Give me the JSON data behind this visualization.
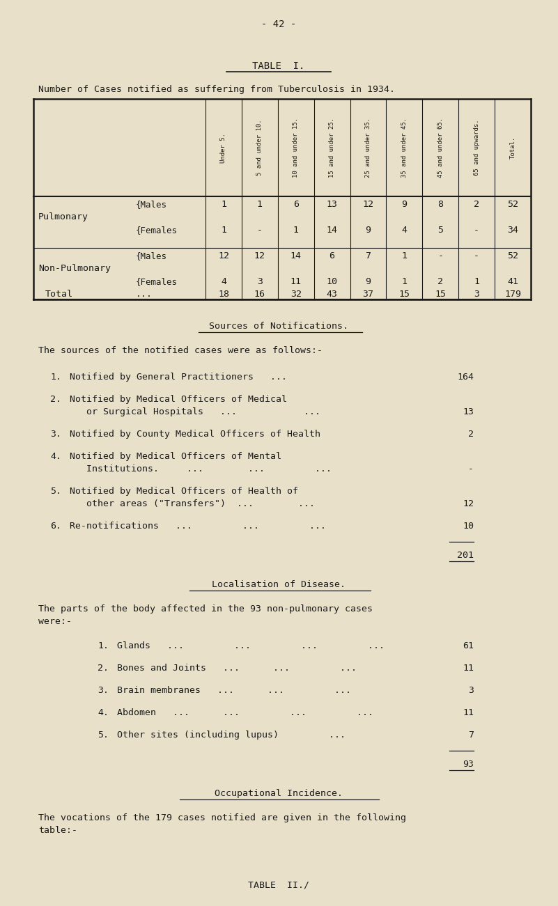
{
  "bg_color": "#e8e0c8",
  "text_color": "#1a1a1a",
  "page_number": "- 42 -",
  "table_title": "TABLE  I.",
  "table_subtitle": "Number of Cases notified as suffering from Tuberculosis in 1934.",
  "col_headers": [
    "Under 5.",
    "5 and under 10.",
    "10 and under 15.",
    "15 and under 25.",
    "25 and under 35.",
    "35 and under 45.",
    "45 and under 65.",
    "65 and upwards.",
    "Total."
  ],
  "row_labels_cat": [
    "Pulmonary",
    "Non-Pulmonary"
  ],
  "row_labels_sub": [
    "{Males",
    "{Females",
    "{Males",
    "{Females"
  ],
  "table_data": [
    [
      "1",
      "1",
      "6",
      "13",
      "12",
      "9",
      "8",
      "2",
      "52"
    ],
    [
      "1",
      "-",
      "1",
      "14",
      "9",
      "4",
      "5",
      "-",
      "34"
    ],
    [
      "12",
      "12",
      "14",
      "6",
      "7",
      "1",
      "-",
      "-",
      "52"
    ],
    [
      "4",
      "3",
      "11",
      "10",
      "9",
      "1",
      "2",
      "1",
      "41"
    ]
  ],
  "total_row_data": [
    "18",
    "16",
    "32",
    "43",
    "37",
    "15",
    "15",
    "3",
    "179"
  ],
  "section1_title": "Sources of Notifications.",
  "section1_intro": "The sources of the notified cases were as follows:-",
  "section1_items": [
    {
      "num": "1.",
      "line1": "Notified by General Practitioners   ...",
      "line2": "",
      "value": "164"
    },
    {
      "num": "2.",
      "line1": "Notified by Medical Officers of Medical",
      "line2": "   or Surgical Hospitals   ...            ...",
      "value": "13"
    },
    {
      "num": "3.",
      "line1": "Notified by County Medical Officers of Health",
      "line2": "",
      "value": "2"
    },
    {
      "num": "4.",
      "line1": "Notified by Medical Officers of Mental",
      "line2": "   Institutions.     ...        ...         ...",
      "value": "-"
    },
    {
      "num": "5.",
      "line1": "Notified by Medical Officers of Health of",
      "line2": "   other areas (\"Transfers\")  ...        ...",
      "value": "12"
    },
    {
      "num": "6.",
      "line1": "Re-notifications   ...         ...         ...",
      "line2": "",
      "value": "10"
    }
  ],
  "section1_total": "201",
  "section2_title": "Localisation of Disease.",
  "section2_intro1": "The parts of the body affected in the 93 non-pulmonary cases",
  "section2_intro2": "were:-",
  "section2_items": [
    {
      "num": "1.",
      "text": "Glands   ...         ...         ...         ...",
      "value": "61"
    },
    {
      "num": "2.",
      "text": "Bones and Joints   ...      ...         ...",
      "value": "11"
    },
    {
      "num": "3.",
      "text": "Brain membranes   ...      ...         ...",
      "value": "3"
    },
    {
      "num": "4.",
      "text": "Abdomen   ...      ...         ...         ...",
      "value": "11"
    },
    {
      "num": "5.",
      "text": "Other sites (including lupus)         ...",
      "value": "7"
    }
  ],
  "section2_total": "93",
  "section3_title": "Occupational Incidence.",
  "section3_intro1": "The vocations of the 179 cases notified are given in the following",
  "section3_intro2": "table:-",
  "footer": "TABLE  II./"
}
